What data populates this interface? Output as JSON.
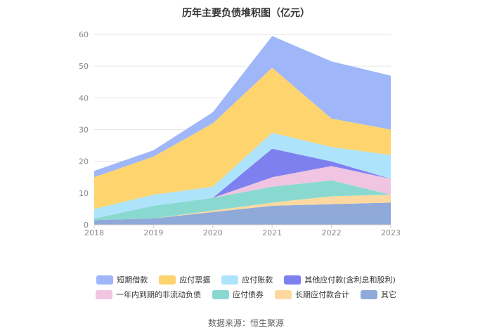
{
  "chart_data": {
    "type": "area",
    "stacked": true,
    "title": "历年主要负债堆积图（亿元）",
    "source": "数据来源：恒生聚源",
    "categories": [
      "2018",
      "2019",
      "2020",
      "2021",
      "2022",
      "2023"
    ],
    "ylim": [
      0,
      60
    ],
    "yticks": [
      0,
      10,
      20,
      30,
      40,
      50,
      60
    ],
    "grid": true,
    "legend_position": "bottom",
    "series": [
      {
        "name": "其它",
        "color": "#8fa9d9",
        "values": [
          1.5,
          2.0,
          4.0,
          6.0,
          6.5,
          7.0
        ]
      },
      {
        "name": "长期应付款合计",
        "color": "#fdd9a0",
        "values": [
          0.0,
          0.0,
          0.5,
          1.0,
          2.5,
          2.5
        ]
      },
      {
        "name": "应付债券",
        "color": "#8ad9d1",
        "values": [
          0.5,
          4.0,
          4.0,
          5.0,
          5.0,
          0.0
        ]
      },
      {
        "name": "一年内到期的非流动负债",
        "color": "#f0c5e1",
        "values": [
          0.0,
          0.0,
          0.0,
          3.0,
          4.5,
          5.0
        ]
      },
      {
        "name": "其他应付款(含利息和股利)",
        "color": "#7f80f0",
        "values": [
          0.0,
          0.0,
          0.0,
          9.0,
          1.5,
          0.0
        ]
      },
      {
        "name": "应付账款",
        "color": "#aee4fb",
        "values": [
          3.0,
          3.5,
          3.5,
          5.0,
          4.5,
          7.5
        ]
      },
      {
        "name": "应付票据",
        "color": "#fed46f",
        "values": [
          10.0,
          12.0,
          20.0,
          20.5,
          9.0,
          8.0
        ]
      },
      {
        "name": "短期借款",
        "color": "#9fb7f8",
        "values": [
          2.0,
          2.0,
          3.5,
          10.0,
          18.0,
          17.0
        ]
      }
    ],
    "legend_rows": [
      [
        "短期借款",
        "应付票据",
        "应付账款",
        "其他应付款(含利息和股利)"
      ],
      [
        "一年内到期的非流动负债",
        "应付债券",
        "长期应付款合计",
        "其它"
      ]
    ]
  }
}
